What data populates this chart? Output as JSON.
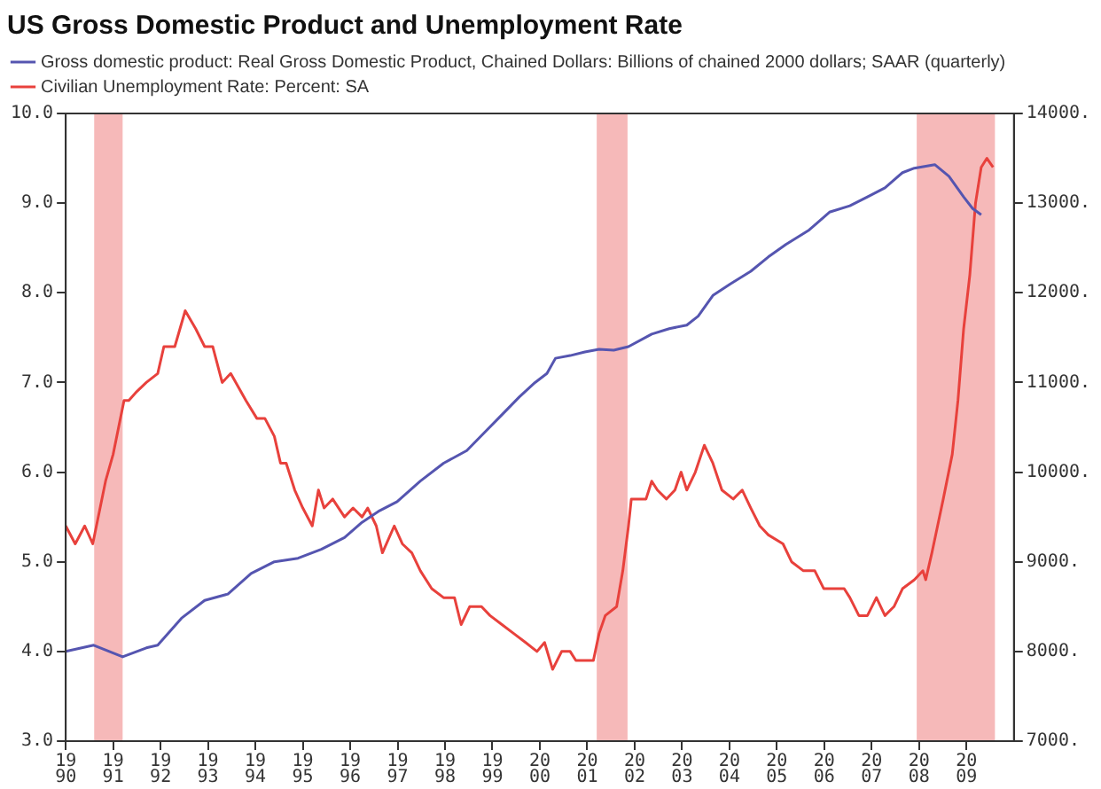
{
  "chart_data": {
    "type": "line",
    "title": "US Gross Domestic Product and Unemployment Rate",
    "series": [
      {
        "name": "Gross domestic product: Real Gross Domestic Product, Chained Dollars: Billions of chained 2000 dollars; SAAR (quarterly)",
        "color": "#5555b0",
        "axis": "y2",
        "x": [
          1990.0,
          1990.59,
          1991.2,
          1991.7,
          1991.94,
          1992.44,
          1992.93,
          1993.42,
          1993.91,
          1994.4,
          1994.9,
          1995.39,
          1995.88,
          1996.25,
          1996.62,
          1996.99,
          1997.48,
          1997.97,
          1998.46,
          1998.83,
          1999.2,
          1999.57,
          1999.9,
          2000.15,
          2000.33,
          2000.64,
          2000.95,
          2001.25,
          2001.56,
          2001.87,
          2002.36,
          2002.73,
          2003.1,
          2003.34,
          2003.65,
          2004.02,
          2004.45,
          2004.82,
          2005.19,
          2005.68,
          2006.11,
          2006.54,
          2006.91,
          2007.28,
          2007.65,
          2007.9,
          2008.33,
          2008.63,
          2008.94,
          2009.13,
          2009.31
        ],
        "values": [
          8000,
          8070,
          7940,
          8040,
          8070,
          8370,
          8570,
          8640,
          8870,
          9000,
          9040,
          9140,
          9270,
          9440,
          9570,
          9670,
          9900,
          10100,
          10240,
          10440,
          10640,
          10840,
          11000,
          11100,
          11270,
          11300,
          11340,
          11370,
          11360,
          11400,
          11540,
          11600,
          11640,
          11740,
          11970,
          12100,
          12240,
          12400,
          12540,
          12700,
          12900,
          12970,
          13070,
          13170,
          13340,
          13390,
          13430,
          13300,
          13070,
          12940,
          12870
        ]
      },
      {
        "name": "Civilian Unemployment Rate: Percent: SA",
        "color": "#e8413c",
        "axis": "y",
        "x": [
          1990.0,
          1990.2,
          1990.4,
          1990.57,
          1990.84,
          1991.0,
          1991.23,
          1991.33,
          1991.5,
          1991.7,
          1991.94,
          1992.07,
          1992.3,
          1992.52,
          1992.74,
          1992.93,
          1993.1,
          1993.3,
          1993.48,
          1993.8,
          1994.03,
          1994.2,
          1994.4,
          1994.53,
          1994.65,
          1994.83,
          1995.0,
          1995.2,
          1995.33,
          1995.45,
          1995.63,
          1995.88,
          1996.06,
          1996.25,
          1996.37,
          1996.55,
          1996.68,
          1996.93,
          1997.1,
          1997.3,
          1997.48,
          1997.72,
          1997.97,
          1998.2,
          1998.34,
          1998.52,
          1998.77,
          1998.95,
          1999.2,
          1999.45,
          1999.7,
          1999.94,
          2000.1,
          2000.27,
          2000.46,
          2000.64,
          2000.76,
          2001.13,
          2001.25,
          2001.38,
          2001.62,
          2001.75,
          2001.87,
          2001.93,
          2002.24,
          2002.36,
          2002.48,
          2002.67,
          2002.85,
          2002.98,
          2003.1,
          2003.28,
          2003.47,
          2003.65,
          2003.84,
          2004.08,
          2004.27,
          2004.45,
          2004.64,
          2004.82,
          2005.13,
          2005.31,
          2005.56,
          2005.8,
          2005.99,
          2006.17,
          2006.42,
          2006.54,
          2006.73,
          2006.91,
          2007.1,
          2007.28,
          2007.47,
          2007.65,
          2007.9,
          2008.08,
          2008.14,
          2008.27,
          2008.39,
          2008.51,
          2008.7,
          2008.82,
          2008.94,
          2009.07,
          2009.19,
          2009.31,
          2009.43,
          2009.56
        ],
        "values": [
          5.4,
          5.2,
          5.4,
          5.2,
          5.9,
          6.2,
          6.8,
          6.8,
          6.9,
          7.0,
          7.1,
          7.4,
          7.4,
          7.8,
          7.6,
          7.4,
          7.4,
          7.0,
          7.1,
          6.8,
          6.6,
          6.6,
          6.4,
          6.1,
          6.1,
          5.8,
          5.6,
          5.4,
          5.8,
          5.6,
          5.7,
          5.5,
          5.6,
          5.5,
          5.6,
          5.4,
          5.1,
          5.4,
          5.2,
          5.1,
          4.9,
          4.7,
          4.6,
          4.6,
          4.3,
          4.5,
          4.5,
          4.4,
          4.3,
          4.2,
          4.1,
          4.0,
          4.1,
          3.8,
          4.0,
          4.0,
          3.9,
          3.9,
          4.2,
          4.4,
          4.5,
          4.9,
          5.4,
          5.7,
          5.7,
          5.9,
          5.8,
          5.7,
          5.8,
          6.0,
          5.8,
          6.0,
          6.3,
          6.1,
          5.8,
          5.7,
          5.8,
          5.6,
          5.4,
          5.3,
          5.2,
          5.0,
          4.9,
          4.9,
          4.7,
          4.7,
          4.7,
          4.6,
          4.4,
          4.4,
          4.6,
          4.4,
          4.5,
          4.7,
          4.8,
          4.9,
          4.8,
          5.1,
          5.4,
          5.7,
          6.2,
          6.8,
          7.6,
          8.2,
          9.0,
          9.4,
          9.5,
          9.4
        ]
      }
    ],
    "xlim": [
      1990,
      2010
    ],
    "xticks": [
      1990,
      1991,
      1992,
      1993,
      1994,
      1995,
      1996,
      1997,
      1998,
      1999,
      2000,
      2001,
      2002,
      2003,
      2004,
      2005,
      2006,
      2007,
      2008,
      2009
    ],
    "ylim": [
      3,
      10
    ],
    "yticks": [
      {
        "value": 3,
        "label": "3.0"
      },
      {
        "value": 4,
        "label": "4.0"
      },
      {
        "value": 5,
        "label": "5.0"
      },
      {
        "value": 6,
        "label": "6.0"
      },
      {
        "value": 7,
        "label": "7.0"
      },
      {
        "value": 8,
        "label": "8.0"
      },
      {
        "value": 9,
        "label": "9.0"
      },
      {
        "value": 10,
        "label": "10.0"
      }
    ],
    "y2lim": [
      7000,
      14000
    ],
    "y2ticks": [
      {
        "value": 7000,
        "label": "7000."
      },
      {
        "value": 8000,
        "label": "8000."
      },
      {
        "value": 9000,
        "label": "9000."
      },
      {
        "value": 10000,
        "label": "10000."
      },
      {
        "value": 11000,
        "label": "11000."
      },
      {
        "value": 12000,
        "label": "12000."
      },
      {
        "value": 13000,
        "label": "13000."
      },
      {
        "value": 14000,
        "label": "14000."
      }
    ],
    "bands": [
      {
        "axis": "x",
        "from": 1990.6,
        "to": 1991.2,
        "color": "#f6b9b9"
      },
      {
        "axis": "x",
        "from": 2001.2,
        "to": 2001.85,
        "color": "#f6b9b9"
      },
      {
        "axis": "x",
        "from": 2007.95,
        "to": 2009.6,
        "color": "#f6b9b9"
      }
    ],
    "grid": false,
    "legend": "top left",
    "marker": "none",
    "line_style": "solid"
  }
}
